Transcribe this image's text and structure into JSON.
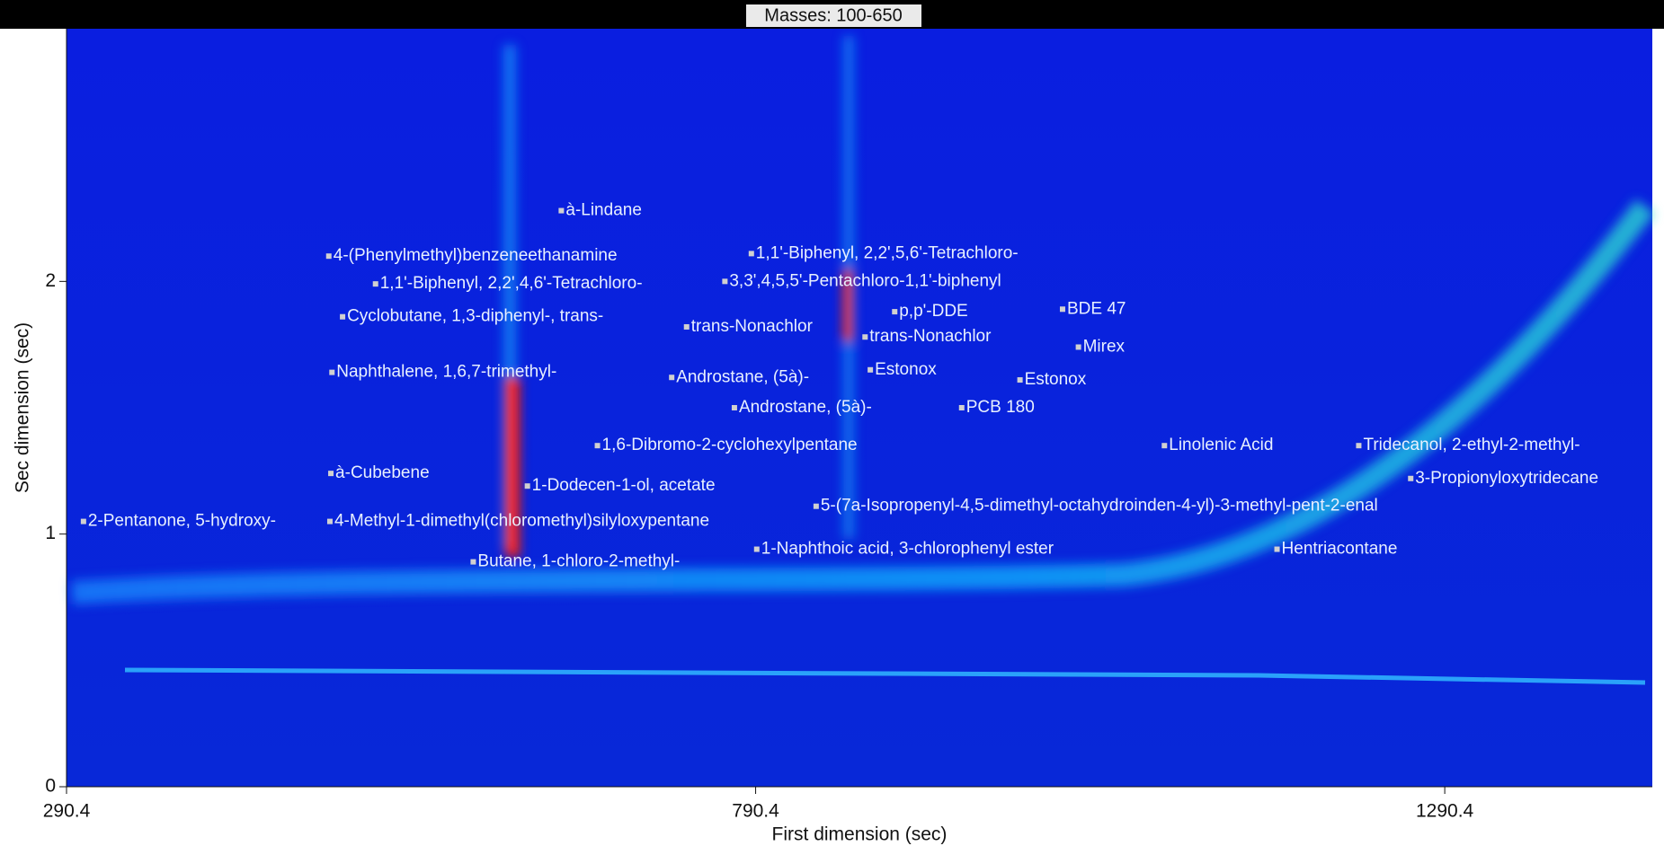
{
  "chart_data": {
    "type": "scatter",
    "title": "Masses:  100-650",
    "xlabel": "First dimension (sec)",
    "ylabel": "Sec dimension (sec)",
    "xlim": [
      290.4,
      1441
    ],
    "ylim": [
      0,
      3
    ],
    "xticks": [
      290.4,
      790.4,
      1290.4
    ],
    "yticks": [
      0,
      1,
      2
    ],
    "marker_color": "#d0d0d0",
    "annotations": [
      {
        "text": "à-Lindane",
        "x": 649.4,
        "y": 2.28
      },
      {
        "text": "4-(Phenylmethyl)benzeneethanamine",
        "x": 480.7,
        "y": 2.1
      },
      {
        "text": "1,1'-Biphenyl, 2,2',5,6'-Tetrachloro-",
        "x": 787.3,
        "y": 2.11
      },
      {
        "text": "1,1'-Biphenyl, 2,2',4,6'-Tetrachloro-",
        "x": 514.6,
        "y": 1.99
      },
      {
        "text": "3,3',4,5,5'-Pentachloro-1,1'-biphenyl",
        "x": 768.1,
        "y": 2.0
      },
      {
        "text": "Cyclobutane, 1,3-diphenyl-, trans-",
        "x": 490.7,
        "y": 1.86
      },
      {
        "text": "p,p'-DDE",
        "x": 891.3,
        "y": 1.88
      },
      {
        "text": "BDE 47",
        "x": 1013.1,
        "y": 1.89
      },
      {
        "text": "trans-Nonachlor",
        "x": 740.3,
        "y": 1.82
      },
      {
        "text": "trans-Nonachlor",
        "x": 869.8,
        "y": 1.78
      },
      {
        "text": "Mirex",
        "x": 1024.6,
        "y": 1.74
      },
      {
        "text": "Naphthalene, 1,6,7-trimethyl-",
        "x": 483.0,
        "y": 1.64
      },
      {
        "text": "Estonox",
        "x": 873.6,
        "y": 1.65
      },
      {
        "text": "Androstane, (5à)-",
        "x": 729.5,
        "y": 1.62
      },
      {
        "text": "Estonox",
        "x": 982.2,
        "y": 1.61
      },
      {
        "text": "Androstane, (5à)-",
        "x": 775.0,
        "y": 1.5
      },
      {
        "text": "PCB 180",
        "x": 939.9,
        "y": 1.5
      },
      {
        "text": "1,6-Dibromo-2-cyclohexylpentane",
        "x": 675.6,
        "y": 1.35
      },
      {
        "text": "Linolenic Acid",
        "x": 1087.0,
        "y": 1.35
      },
      {
        "text": "Tridecanol, 2-ethyl-2-methyl-",
        "x": 1228.0,
        "y": 1.35
      },
      {
        "text": "à-Cubebene",
        "x": 482.2,
        "y": 1.24
      },
      {
        "text": "3-Propionyloxytridecane",
        "x": 1265.7,
        "y": 1.22
      },
      {
        "text": "1-Dodecen-1-ol, acetate",
        "x": 624.8,
        "y": 1.19
      },
      {
        "text": "5-(7a-Isopropenyl-4,5-dimethyl-octahydroinden-4-yl)-3-methyl-pent-2-enal",
        "x": 834.3,
        "y": 1.11
      },
      {
        "text": "2-Pentanone, 5-hydroxy-",
        "x": 302.7,
        "y": 1.05
      },
      {
        "text": "4-Methyl-1-dimethyl(chloromethyl)silyloxypentane",
        "x": 481.5,
        "y": 1.05
      },
      {
        "text": "1-Naphthoic acid, 3-chlorophenyl ester",
        "x": 791.2,
        "y": 0.94
      },
      {
        "text": "Hentriacontane",
        "x": 1168.7,
        "y": 0.94
      },
      {
        "text": "Butane, 1-chloro-2-methyl-",
        "x": 585.5,
        "y": 0.89
      }
    ]
  }
}
